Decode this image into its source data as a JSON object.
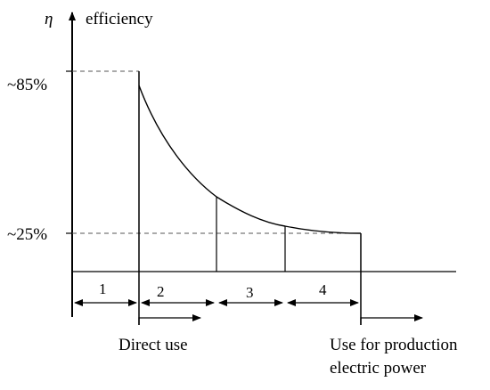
{
  "axis": {
    "y_symbol": "η",
    "y_label": "efficiency",
    "tick_high": "~85%",
    "tick_low": "~25%"
  },
  "segments": [
    "1",
    "2",
    "3",
    "4"
  ],
  "annotations": {
    "direct_use": "Direct use",
    "production_line1": "Use for production",
    "production_line2": "electric power"
  }
}
